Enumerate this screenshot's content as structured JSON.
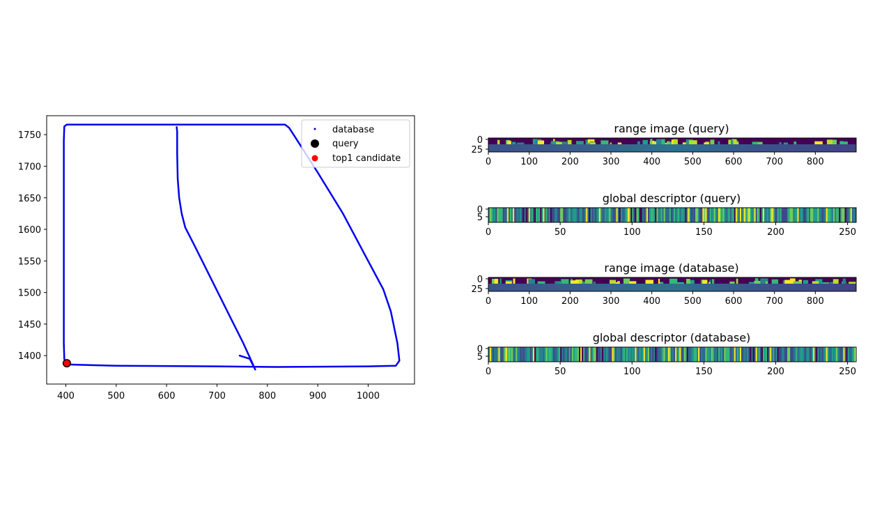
{
  "chart_data": [
    {
      "type": "scatter",
      "xlim": [
        362,
        1092
      ],
      "ylim": [
        1355,
        1780
      ],
      "xticks": [
        400,
        500,
        600,
        700,
        800,
        900,
        1000
      ],
      "yticks": [
        1400,
        1450,
        1500,
        1550,
        1600,
        1650,
        1700,
        1750
      ],
      "grid": false,
      "legend_position": "top-right",
      "legend": [
        {
          "label": "database",
          "color": "#0000cc",
          "marker": "dot"
        },
        {
          "label": "query",
          "color": "#000000",
          "marker": "circle"
        },
        {
          "label": "top1 candidate",
          "color": "#ff0000",
          "marker": "circle"
        }
      ],
      "series": [
        {
          "name": "database",
          "color": "#0000ee",
          "paths": [
            [
              [
                400,
                1388
              ],
              [
                402,
                1386
              ],
              [
                500,
                1384
              ],
              [
                700,
                1383
              ],
              [
                820,
                1382
              ],
              [
                1000,
                1383
              ],
              [
                1055,
                1384
              ],
              [
                1062,
                1392
              ],
              [
                1058,
                1420
              ],
              [
                1045,
                1470
              ],
              [
                1030,
                1505
              ],
              [
                990,
                1565
              ],
              [
                950,
                1625
              ],
              [
                900,
                1690
              ],
              [
                860,
                1740
              ],
              [
                843,
                1761
              ],
              [
                835,
                1766
              ],
              [
                600,
                1766
              ],
              [
                402,
                1766
              ],
              [
                397,
                1763
              ],
              [
                396,
                1740
              ],
              [
                396,
                1700
              ],
              [
                396,
                1600
              ],
              [
                396,
                1500
              ],
              [
                396,
                1420
              ],
              [
                397,
                1395
              ],
              [
                400,
                1388
              ]
            ],
            [
              [
                620,
                1762
              ],
              [
                621,
                1755
              ],
              [
                621,
                1720
              ],
              [
                622,
                1680
              ],
              [
                625,
                1650
              ],
              [
                630,
                1625
              ],
              [
                637,
                1603
              ],
              [
                655,
                1575
              ],
              [
                680,
                1535
              ],
              [
                705,
                1495
              ],
              [
                730,
                1455
              ],
              [
                752,
                1420
              ],
              [
                768,
                1392
              ],
              [
                772,
                1385
              ]
            ],
            [
              [
                745,
                1400
              ],
              [
                765,
                1395
              ],
              [
                776,
                1378
              ]
            ]
          ]
        },
        {
          "name": "query",
          "color": "#000000",
          "x": [
            402
          ],
          "y": [
            1388
          ]
        },
        {
          "name": "top1 candidate",
          "color": "#ff0000",
          "x": [
            402
          ],
          "y": [
            1388
          ]
        }
      ]
    },
    {
      "type": "heatmap",
      "title": "range image (query)",
      "xticks": [
        0,
        100,
        200,
        300,
        400,
        500,
        600,
        700,
        800
      ],
      "yticks": [
        0,
        25
      ],
      "xlim": [
        0,
        900
      ],
      "colormap": "viridis"
    },
    {
      "type": "heatmap",
      "title": "global descriptor (query)",
      "xticks": [
        0,
        50,
        100,
        150,
        200,
        250
      ],
      "yticks": [
        0,
        5
      ],
      "xlim": [
        0,
        256
      ],
      "colormap": "viridis"
    },
    {
      "type": "heatmap",
      "title": "range image (database)",
      "xticks": [
        0,
        100,
        200,
        300,
        400,
        500,
        600,
        700,
        800
      ],
      "yticks": [
        0,
        25
      ],
      "xlim": [
        0,
        900
      ],
      "colormap": "viridis"
    },
    {
      "type": "heatmap",
      "title": "global descriptor (database)",
      "xticks": [
        0,
        50,
        100,
        150,
        200,
        250
      ],
      "yticks": [
        0,
        5
      ],
      "xlim": [
        0,
        256
      ],
      "colormap": "viridis"
    }
  ]
}
